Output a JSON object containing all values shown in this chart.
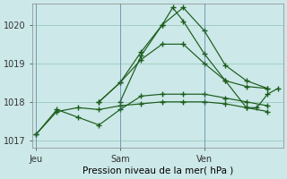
{
  "xlabel": "Pression niveau de la mer( hPa )",
  "bg_color": "#cce8e8",
  "grid_color": "#99ccbb",
  "line_color": "#1a5c1a",
  "ylim": [
    1016.8,
    1020.55
  ],
  "yticks": [
    1017,
    1018,
    1019,
    1020
  ],
  "xtick_labels": [
    "Jeu",
    "Sam",
    "Ven"
  ],
  "xtick_positions": [
    0,
    8,
    16
  ],
  "vline_positions": [
    0,
    8,
    16
  ],
  "xlim": [
    -0.3,
    23.5
  ],
  "series": [
    {
      "x": [
        0,
        2,
        4,
        6,
        8,
        10,
        12,
        14,
        16,
        18,
        20,
        22
      ],
      "y": [
        1017.15,
        1017.75,
        1017.85,
        1017.8,
        1017.9,
        1017.95,
        1018.0,
        1018.0,
        1018.0,
        1017.95,
        1017.85,
        1017.75
      ]
    },
    {
      "x": [
        0,
        2,
        4,
        6,
        8,
        10,
        12,
        14,
        16,
        18,
        20,
        22
      ],
      "y": [
        1017.15,
        1017.8,
        1017.6,
        1017.4,
        1017.8,
        1018.15,
        1018.2,
        1018.2,
        1018.2,
        1018.1,
        1018.0,
        1017.9
      ]
    },
    {
      "x": [
        6,
        8,
        10,
        12,
        14,
        16,
        18,
        20,
        22
      ],
      "y": [
        1018.0,
        1018.5,
        1019.1,
        1019.5,
        1019.5,
        1019.0,
        1018.55,
        1018.4,
        1018.35
      ]
    },
    {
      "x": [
        6,
        8,
        10,
        12,
        14,
        16,
        18,
        20,
        22
      ],
      "y": [
        1018.0,
        1018.5,
        1019.3,
        1020.0,
        1020.45,
        1019.85,
        1018.95,
        1018.55,
        1018.35
      ]
    },
    {
      "x": [
        8,
        10,
        12,
        13,
        14,
        16,
        18,
        20,
        21,
        22,
        23
      ],
      "y": [
        1018.0,
        1019.2,
        1020.0,
        1020.45,
        1020.1,
        1019.25,
        1018.55,
        1017.85,
        1017.85,
        1018.2,
        1018.35
      ]
    }
  ]
}
